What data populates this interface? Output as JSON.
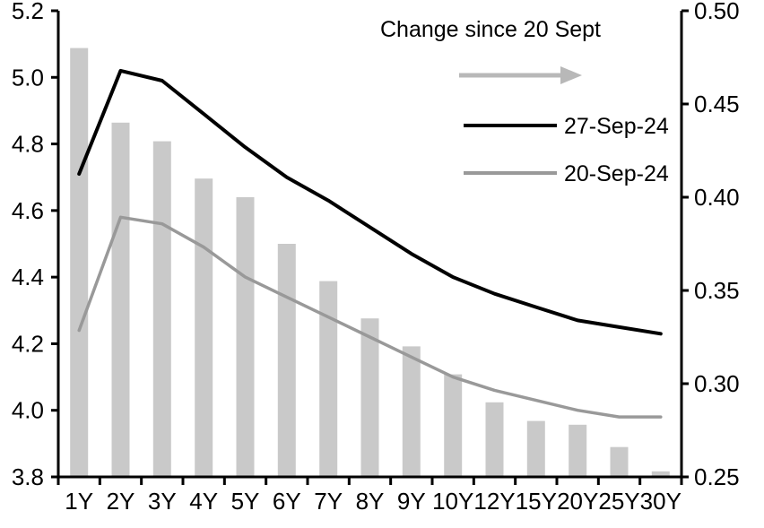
{
  "chart_data": {
    "type": "bar+line combo (dual axis yield curves)",
    "categories": [
      "1Y",
      "2Y",
      "3Y",
      "4Y",
      "5Y",
      "6Y",
      "7Y",
      "8Y",
      "9Y",
      "10Y",
      "12Y",
      "15Y",
      "20Y",
      "25Y",
      "30Y"
    ],
    "series": [
      {
        "name": "Change since 20 Sept",
        "type": "bar",
        "axis": "right",
        "color": "#c9c9c9",
        "values": [
          0.48,
          0.44,
          0.43,
          0.41,
          0.4,
          0.375,
          0.355,
          0.335,
          0.32,
          0.305,
          0.29,
          0.28,
          0.278,
          0.266,
          0.253
        ]
      },
      {
        "name": "27-Sep-24",
        "type": "line",
        "axis": "left",
        "color": "#000000",
        "values": [
          4.71,
          5.02,
          4.99,
          4.89,
          4.79,
          4.7,
          4.63,
          4.55,
          4.47,
          4.4,
          4.35,
          4.31,
          4.27,
          4.25,
          4.23
        ]
      },
      {
        "name": "20-Sep-24",
        "type": "line",
        "axis": "left",
        "color": "#999999",
        "values": [
          4.24,
          4.58,
          4.56,
          4.49,
          4.4,
          4.34,
          4.28,
          4.22,
          4.16,
          4.1,
          4.06,
          4.03,
          4.0,
          3.98,
          3.98
        ]
      }
    ],
    "left_axis": {
      "min": 3.8,
      "max": 5.2,
      "step": 0.2,
      "tick_labels": [
        "5.2",
        "5.0",
        "4.8",
        "4.6",
        "4.4",
        "4.2",
        "4.0",
        "3.8"
      ]
    },
    "right_axis": {
      "min": 0.25,
      "max": 0.5,
      "step": 0.05,
      "tick_labels": [
        "0.50",
        "0.45",
        "0.40",
        "0.35",
        "0.30",
        "0.25"
      ]
    },
    "grid": "off",
    "legend": {
      "title": "Change since 20 Sept",
      "arrow_color": "#b8b8b8",
      "entries": [
        "27-Sep-24",
        "20-Sep-24"
      ],
      "position": "top-right inside plot"
    },
    "axis_color": "#000000",
    "bar_color": "#c9c9c9"
  }
}
